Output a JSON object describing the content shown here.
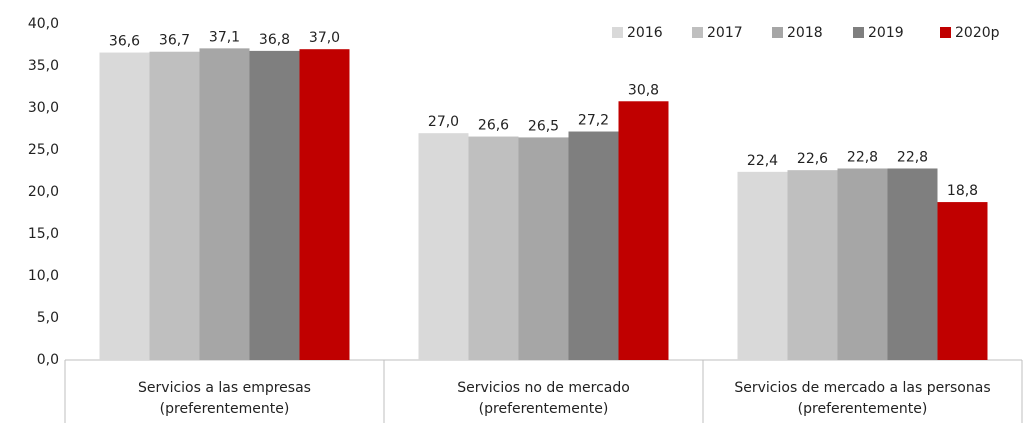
{
  "chart_data": {
    "type": "bar",
    "categories": [
      "Servicios a las empresas\n(preferentemente)",
      "Servicios no de mercado\n(preferentemente)",
      "Servicios de mercado a las personas\n(preferentemente)"
    ],
    "series": [
      {
        "name": "2016",
        "color": "#d9d9d9",
        "values": [
          36.6,
          27.0,
          22.4
        ],
        "value_labels": [
          "36,6",
          "27,0",
          "22,4"
        ]
      },
      {
        "name": "2017",
        "color": "#bfbfbf",
        "values": [
          36.7,
          26.6,
          22.6
        ],
        "value_labels": [
          "36,7",
          "26,6",
          "22,6"
        ]
      },
      {
        "name": "2018",
        "color": "#a6a6a6",
        "values": [
          37.1,
          26.5,
          22.8
        ],
        "value_labels": [
          "37,1",
          "26,5",
          "22,8"
        ]
      },
      {
        "name": "2019",
        "color": "#7f7f7f",
        "values": [
          36.8,
          27.2,
          22.8
        ],
        "value_labels": [
          "36,8",
          "27,2",
          "22,8"
        ]
      },
      {
        "name": "2020p",
        "color": "#c00000",
        "values": [
          37.0,
          30.8,
          18.8
        ],
        "value_labels": [
          "37,0",
          "30,8",
          "18,8"
        ]
      }
    ],
    "ylim": [
      0,
      40
    ],
    "yticks": [
      {
        "value": 0,
        "label": "0,0"
      },
      {
        "value": 5,
        "label": "5,0"
      },
      {
        "value": 10,
        "label": "10,0"
      },
      {
        "value": 15,
        "label": "15,0"
      },
      {
        "value": 20,
        "label": "20,0"
      },
      {
        "value": 25,
        "label": "25,0"
      },
      {
        "value": 30,
        "label": "30,0"
      },
      {
        "value": 35,
        "label": "35,0"
      },
      {
        "value": 40,
        "label": "40,0"
      }
    ],
    "legend": "top-right"
  }
}
